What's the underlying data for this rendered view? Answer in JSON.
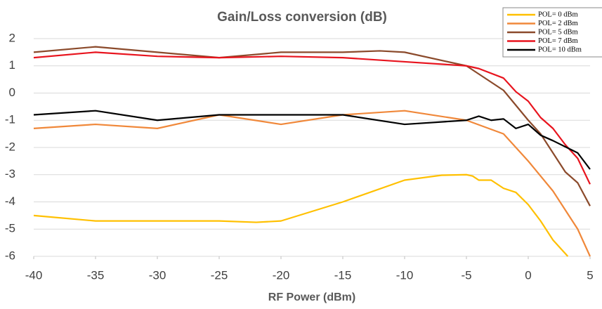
{
  "chart_data": {
    "type": "line",
    "title": "Gain/Loss conversion (dB)",
    "x_label": "RF Power (dBm)",
    "xlim": [
      -40,
      5
    ],
    "xticks": [
      -40,
      -35,
      -30,
      -25,
      -20,
      -15,
      -10,
      -5,
      0,
      5
    ],
    "ylim": [
      -6,
      2
    ],
    "yticks": [
      2,
      1,
      0,
      -1,
      -2,
      -3,
      -4,
      -5,
      -6
    ],
    "grid": true,
    "legend": "top-right",
    "series": [
      {
        "name": "POL= 0 dBm",
        "color": "#ffc000",
        "x": [
          -40,
          -35,
          -30,
          -25,
          -22,
          -20,
          -15,
          -10,
          -7,
          -5,
          -4.5,
          -4,
          -3,
          -2,
          -1,
          0,
          1,
          2,
          3.2
        ],
        "values": [
          -4.5,
          -4.7,
          -4.7,
          -4.7,
          -4.75,
          -4.7,
          -4.0,
          -3.2,
          -3.02,
          -3.0,
          -3.05,
          -3.2,
          -3.2,
          -3.5,
          -3.65,
          -4.1,
          -4.7,
          -5.4,
          -6
        ]
      },
      {
        "name": "POL= 2 dBm",
        "color": "#f0883a",
        "x": [
          -40,
          -35,
          -30,
          -25,
          -20,
          -15,
          -10,
          -5,
          -2,
          0,
          2,
          4,
          5
        ],
        "values": [
          -1.3,
          -1.15,
          -1.3,
          -0.8,
          -1.15,
          -0.8,
          -0.65,
          -1.0,
          -1.5,
          -2.5,
          -3.6,
          -5.0,
          -6
        ]
      },
      {
        "name": "POL= 5 dBm",
        "color": "#8b4a2b",
        "x": [
          -40,
          -35,
          -30,
          -25,
          -20,
          -15,
          -12,
          -10,
          -5,
          -4,
          -2,
          0,
          1,
          3,
          4,
          5
        ],
        "values": [
          1.5,
          1.7,
          1.5,
          1.3,
          1.5,
          1.5,
          1.55,
          1.5,
          1.0,
          0.7,
          0.1,
          -1.0,
          -1.5,
          -2.9,
          -3.3,
          -4.15
        ]
      },
      {
        "name": "POL= 7 dBm",
        "color": "#e8141e",
        "x": [
          -40,
          -35,
          -30,
          -25,
          -20,
          -15,
          -10,
          -5,
          -4,
          -2,
          -1,
          0,
          1,
          2,
          3,
          4,
          5
        ],
        "values": [
          1.3,
          1.5,
          1.35,
          1.3,
          1.35,
          1.3,
          1.15,
          1.0,
          0.9,
          0.55,
          0.05,
          -0.3,
          -0.9,
          -1.3,
          -1.9,
          -2.4,
          -3.35
        ]
      },
      {
        "name": "POL= 10 dBm",
        "color": "#000000",
        "x": [
          -40,
          -35,
          -30,
          -25,
          -20,
          -15,
          -10,
          -5,
          -4,
          -3,
          -2,
          -1,
          0,
          1,
          2,
          4,
          5
        ],
        "values": [
          -0.8,
          -0.65,
          -1.0,
          -0.8,
          -0.8,
          -0.8,
          -1.15,
          -1.0,
          -0.85,
          -1.0,
          -0.95,
          -1.3,
          -1.15,
          -1.55,
          -1.75,
          -2.2,
          -2.8
        ]
      }
    ]
  }
}
